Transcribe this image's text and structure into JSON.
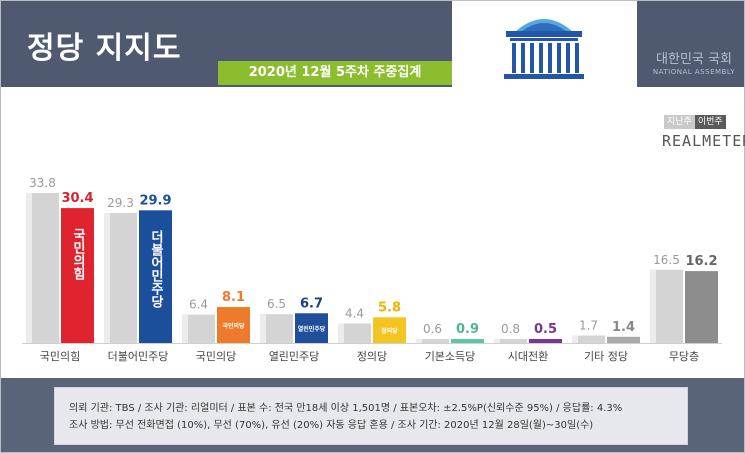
{
  "header": {
    "title": "정당 지지도",
    "subtitle": "2020년 12월 5주차 주중집계",
    "assembly_ko": "대한민국 국회",
    "assembly_en": "NATIONAL ASSEMBLY"
  },
  "legend": {
    "previous": "지난주",
    "current": "이번주"
  },
  "brand": "REALMETER",
  "colors": {
    "previous": "#d4d4d4",
    "ppp": "#e0242f",
    "dem": "#1b4f9c",
    "pp": "#ee7a2b",
    "ydp": "#1f4e9a",
    "jp": "#f4c520",
    "bip": "#5ec6a8",
    "tc": "#7b3590",
    "others": "#aaaaaa",
    "none": "#8d8d8d",
    "header_bg": "#4f5a70",
    "accent_green": "#8bbd2f"
  },
  "chart_data": {
    "type": "bar",
    "categories": [
      "국민의힘",
      "더불어민주당",
      "국민의당",
      "열린민주당",
      "정의당",
      "기본소득당",
      "시대전환",
      "기타 정당",
      "무당층"
    ],
    "series": [
      {
        "name": "지난주",
        "values": [
          33.8,
          29.3,
          6.4,
          6.5,
          4.4,
          0.6,
          0.8,
          1.7,
          16.5
        ]
      },
      {
        "name": "이번주",
        "values": [
          30.4,
          29.9,
          8.1,
          6.7,
          5.8,
          0.9,
          0.5,
          1.4,
          16.2
        ]
      }
    ],
    "bar_labels": [
      "국민의힘",
      "더불어민주당",
      "국민의당",
      "열린민주당",
      "정의당"
    ],
    "ylim": [
      0,
      36
    ],
    "grid": false,
    "legend_position": "top-right"
  },
  "footer": {
    "line1": "의뢰 기관: TBS / 조사 기관: 리얼미터 / 표본 수: 전국 만18세 이상 1,501명 / 표본오차: ±2.5%P(신뢰수준 95%) / 응답률: 4.3%",
    "line2": "조사 방법: 무선 전화면접 (10%), 무선 (70%), 유선 (20%) 자동 응답 혼용 / 조사 기간: 2020년 12월 28일(월)~30일(수)"
  }
}
